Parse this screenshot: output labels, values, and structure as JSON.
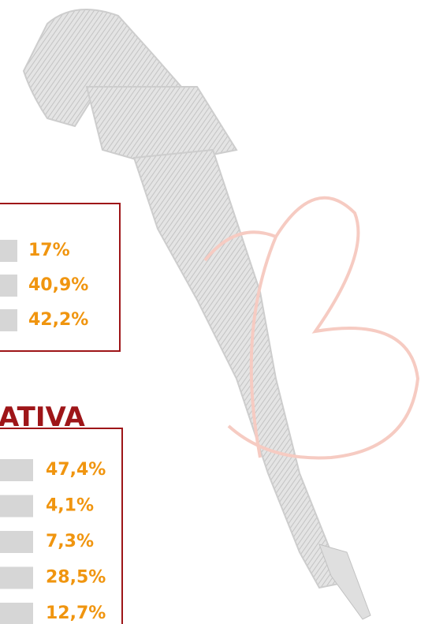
{
  "panel_1": {
    "values": [
      "17%",
      "40,9%",
      "42,2%"
    ]
  },
  "panel_2": {
    "heading": "ATIVA",
    "values": [
      "47,4%",
      "4,1%",
      "7,3%",
      "28,5%",
      "12,7%"
    ]
  }
}
